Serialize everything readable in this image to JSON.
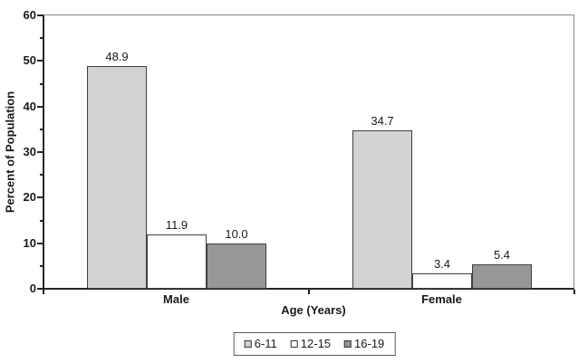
{
  "chart_data": {
    "type": "bar",
    "title": "",
    "categories": [
      "Male",
      "Female"
    ],
    "series": [
      {
        "name": "6-11",
        "values": [
          48.9,
          34.7
        ],
        "color": "#d2d2d2"
      },
      {
        "name": "12-15",
        "values": [
          11.9,
          3.4
        ],
        "color": "#ffffff"
      },
      {
        "name": "16-19",
        "values": [
          10.0,
          5.4
        ],
        "color": "#979797"
      }
    ],
    "xlabel": "Age (Years)",
    "ylabel": "Percent of Population",
    "ylim": [
      0,
      60
    ],
    "y_major_step": 10,
    "y_minor_step": 5,
    "grid": false,
    "legend_position": "bottom",
    "bar_value_labels": true,
    "value_decimals": 1
  },
  "colors": {
    "bar_border": "#404040",
    "axis": "#262626",
    "frame": "#848484",
    "background": "#ffffff",
    "text": "#1a1a1a",
    "legend_border": "#595959"
  }
}
